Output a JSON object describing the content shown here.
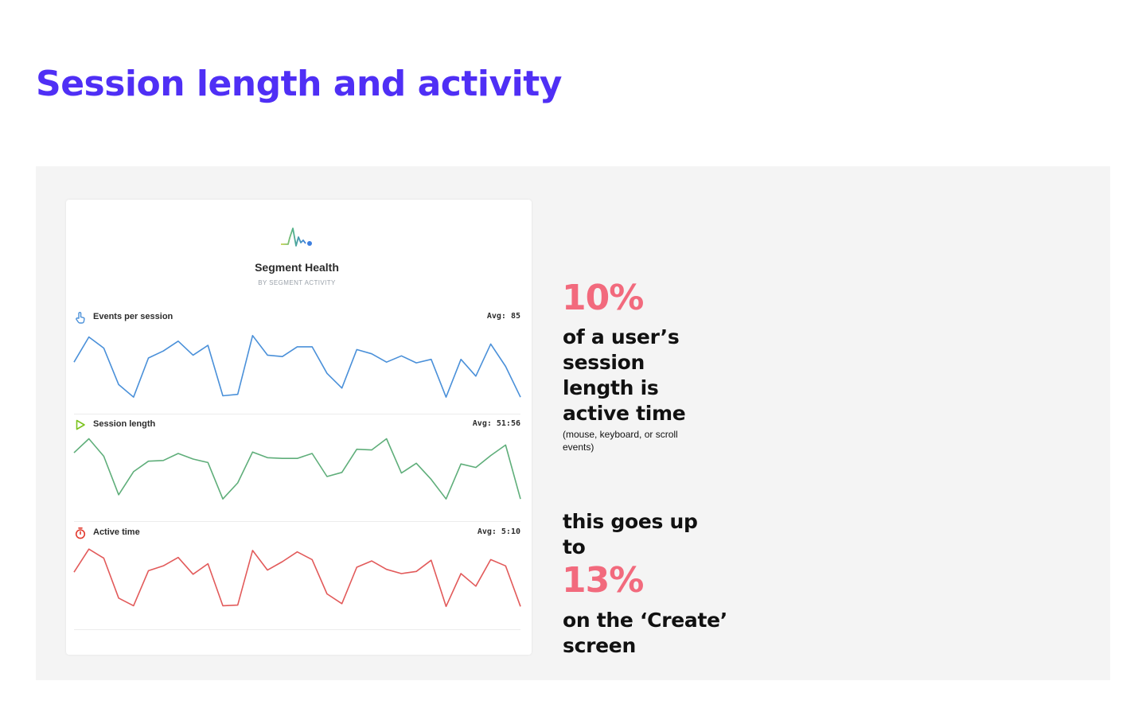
{
  "page": {
    "title": "Session length and activity"
  },
  "card": {
    "title": "Segment Health",
    "subtitle": "BY SEGMENT ACTIVITY"
  },
  "colors": {
    "title": "#4f2ff5",
    "highlight": "#f26a7d",
    "events": "#4a90d9",
    "session": "#5fae7a",
    "active": "#e25a5a"
  },
  "sections": [
    {
      "label": "Events per session",
      "avg": "Avg: 85",
      "icon": "hand-pointer-icon"
    },
    {
      "label": "Session length",
      "avg": "Avg: 51:56",
      "icon": "play-icon"
    },
    {
      "label": "Active time",
      "avg": "Avg: 5:10",
      "icon": "stopwatch-icon"
    }
  ],
  "stats": {
    "first_pct": "10%",
    "first_lines": [
      "of a user’s",
      "session",
      "length is",
      "active time"
    ],
    "first_note": "(mouse, keyboard, or scroll events)",
    "second_lines": [
      "this goes up",
      "to"
    ],
    "second_pct": "13%",
    "third_lines": [
      "on the ‘Create’",
      "screen"
    ]
  },
  "chart_data": [
    {
      "type": "line",
      "title": "Events per session",
      "ylim": [
        0,
        100
      ],
      "series": [
        {
          "values": [
            52,
            88,
            72,
            20,
            2,
            58,
            68,
            82,
            62,
            76,
            4,
            6,
            90,
            62,
            60,
            74,
            74,
            36,
            15,
            70,
            64,
            52,
            61,
            51,
            56,
            2,
            56,
            32,
            78,
            46,
            2
          ]
        }
      ]
    },
    {
      "type": "line",
      "title": "Session length",
      "ylim": [
        0,
        100
      ],
      "series": [
        {
          "values": [
            76,
            96,
            71,
            16,
            49,
            64,
            65,
            75,
            67,
            62,
            10,
            33,
            77,
            69,
            68,
            68,
            75,
            42,
            48,
            81,
            80,
            96,
            47,
            61,
            38,
            10,
            60,
            55,
            72,
            87,
            10
          ]
        }
      ]
    },
    {
      "type": "line",
      "title": "Active time",
      "ylim": [
        0,
        100
      ],
      "series": [
        {
          "values": [
            60,
            93,
            80,
            23,
            12,
            62,
            69,
            81,
            57,
            72,
            12,
            13,
            91,
            63,
            75,
            89,
            78,
            29,
            15,
            67,
            76,
            64,
            58,
            61,
            77,
            11,
            58,
            40,
            78,
            69,
            11
          ]
        }
      ]
    }
  ]
}
